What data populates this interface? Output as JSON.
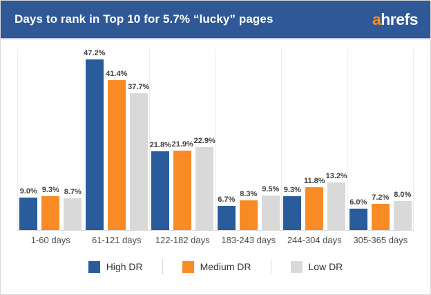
{
  "header": {
    "logo": {
      "prefix": "a",
      "rest": "hrefs"
    },
    "logo_colors": {
      "prefix": "#f78b1f",
      "rest": "#ffffff"
    },
    "background": "#2f5897"
  },
  "chart_data": {
    "type": "bar",
    "title": "Days to rank in Top 10 for 5.7% “lucky” pages",
    "categories": [
      "1-60 days",
      "61-121 days",
      "122-182 days",
      "183-243 days",
      "244-304 days",
      "305-365 days"
    ],
    "series": [
      {
        "name": "High DR",
        "color": "#2a5c9b",
        "values": [
          9.0,
          47.2,
          21.8,
          6.7,
          9.3,
          6.0
        ]
      },
      {
        "name": "Medium DR",
        "color": "#f98b26",
        "values": [
          9.3,
          41.4,
          21.9,
          8.3,
          11.8,
          7.2
        ]
      },
      {
        "name": "Low DR",
        "color": "#d9d9d9",
        "values": [
          8.7,
          37.7,
          22.9,
          9.5,
          13.2,
          8.0
        ]
      }
    ],
    "value_suffix": "%",
    "ylim": [
      0,
      50
    ],
    "xlabel": "",
    "ylabel": "",
    "grid": "vertical-separators-only",
    "legend_position": "bottom",
    "value_labels": "above-bars"
  }
}
